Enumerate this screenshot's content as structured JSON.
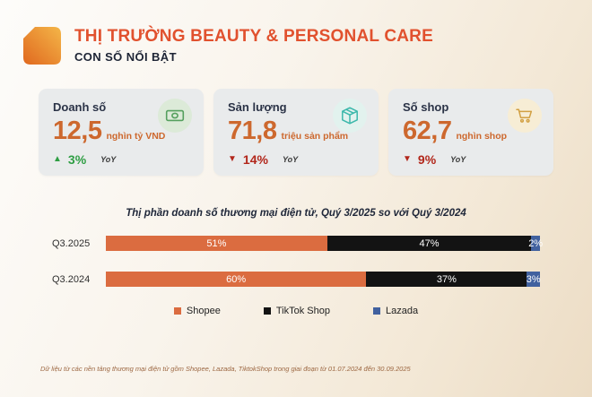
{
  "header": {
    "title": "THỊ TRƯỜNG BEAUTY & PERSONAL CARE",
    "subtitle": "CON SỐ NỔI BẬT"
  },
  "cards": [
    {
      "title": "Doanh số",
      "value": "12,5",
      "unit": "nghìn tỷ VND",
      "direction": "up",
      "glyph": "▲",
      "change": "3%",
      "yoy": "YoY",
      "icon": "banknote-icon",
      "icon_bg": "#dcead8",
      "icon_color": "#55a05e",
      "change_color": "#2f9e44"
    },
    {
      "title": "Sản lượng",
      "value": "71,8",
      "unit": "triệu sản phẩm",
      "direction": "down",
      "glyph": "▼",
      "change": "14%",
      "yoy": "YoY",
      "icon": "package-icon",
      "icon_bg": "#e2f2ee",
      "icon_color": "#3cb8ab",
      "change_color": "#b2271b"
    },
    {
      "title": "Số shop",
      "value": "62,7",
      "unit": "nghìn shop",
      "direction": "down",
      "glyph": "▼",
      "change": "9%",
      "yoy": "YoY",
      "icon": "cart-icon",
      "icon_bg": "#f7edd5",
      "icon_color": "#d2a043",
      "change_color": "#b2271b"
    }
  ],
  "chart_data": {
    "type": "bar",
    "orientation": "horizontal",
    "stacked": true,
    "title": "Thị phần doanh số thương mại điện tử, Quý 3/2025 so với Quý 3/2024",
    "categories": [
      "Q3.2025",
      "Q3.2024"
    ],
    "series": [
      {
        "name": "Shopee",
        "values": [
          51,
          60
        ],
        "color": "#db6c40"
      },
      {
        "name": "TikTok Shop",
        "values": [
          47,
          37
        ],
        "color": "#131313"
      },
      {
        "name": "Lazada",
        "values": [
          2,
          3
        ],
        "color": "#41619f"
      }
    ],
    "unit": "%",
    "xlim": [
      0,
      100
    ],
    "grid": false,
    "legend_position": "bottom",
    "value_labels": "inside-white"
  },
  "footnote": "Dữ liệu từ các nền tảng thương mại điện tử gồm Shopee, Lazada, TiktokShop trong giai đoạn từ 01.07.2024 đến 30.09.2025",
  "colors": {
    "accent_orange": "#e1512e",
    "number_orange": "#cd682e",
    "dark_navy": "#1d2435",
    "card_bg": "#e9ebec",
    "up_green": "#2f9e44",
    "down_red": "#b2271b"
  }
}
